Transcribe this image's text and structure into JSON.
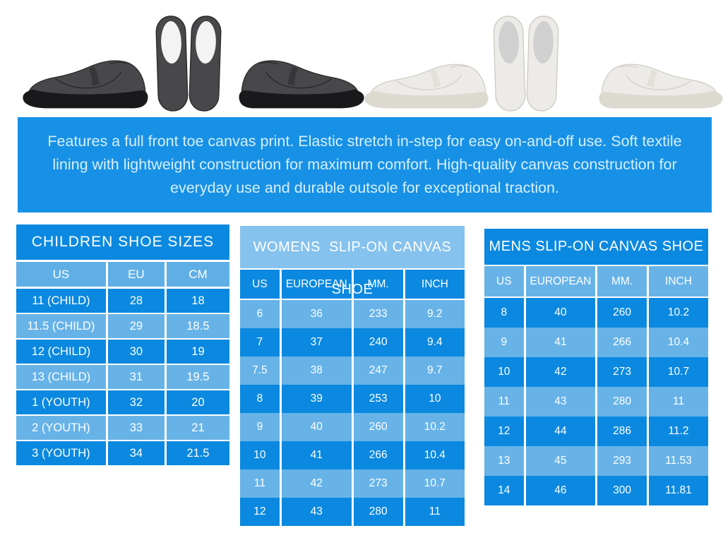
{
  "colors": {
    "banner_bg": "#1791e6",
    "banner_text": "#d6effb",
    "blue_dark": "#0b89e0",
    "row_light": "#67b3e8",
    "head_light": "#5fafe6",
    "title_light": "#85c2ed",
    "white": "#ffffff",
    "shoe_black_canvas": "#48484b",
    "shoe_black_sole": "#19191b",
    "shoe_black_insole": "#f3f3f3",
    "shoe_white_canvas": "#edebe7",
    "shoe_white_sole": "#dcd9d0",
    "shoe_white_insole": "#d0d0d0"
  },
  "product_photos": [
    {
      "name": "black-slip-on-side-view-toe-left"
    },
    {
      "name": "black-slip-on-pair-top-view"
    },
    {
      "name": "black-slip-on-side-view-toe-right"
    },
    {
      "name": "white-slip-on-side-view-toe-left"
    },
    {
      "name": "white-slip-on-pair-top-view"
    },
    {
      "name": "white-slip-on-side-view-toe-right"
    }
  ],
  "banner": {
    "lines": [
      "Features a full front toe canvas print. Elastic stretch in-step for easy on-and-off use. Soft textile",
      "lining with lightweight construction for maximum comfort. High-quality canvas construction for",
      "everyday use and durable outsole for exceptional traction."
    ]
  },
  "chart_data": [
    {
      "type": "table",
      "title": "CHILDREN SHOE SIZES",
      "columns": [
        "US",
        "EU",
        "CM"
      ],
      "rows": [
        [
          "11 (CHILD)",
          "28",
          "18"
        ],
        [
          "11.5 (CHILD)",
          "29",
          "18.5"
        ],
        [
          "12 (CHILD)",
          "30",
          "19"
        ],
        [
          "13 (CHILD)",
          "31",
          "19.5"
        ],
        [
          "1 (YOUTH)",
          "32",
          "20"
        ],
        [
          "2 (YOUTH)",
          "33",
          "21"
        ],
        [
          "3 (YOUTH)",
          "34",
          "21.5"
        ]
      ]
    },
    {
      "type": "table",
      "title": "WOMENS  SLIP-ON CANVAS SHOE",
      "columns": [
        "US",
        "EUROPEAN",
        "MM.",
        "INCH"
      ],
      "rows": [
        [
          "6",
          "36",
          "233",
          "9.2"
        ],
        [
          "7",
          "37",
          "240",
          "9.4"
        ],
        [
          "7.5",
          "38",
          "247",
          "9.7"
        ],
        [
          "8",
          "39",
          "253",
          "10"
        ],
        [
          "9",
          "40",
          "260",
          "10.2"
        ],
        [
          "10",
          "41",
          "266",
          "10.4"
        ],
        [
          "11",
          "42",
          "273",
          "10.7"
        ],
        [
          "12",
          "43",
          "280",
          "11"
        ]
      ]
    },
    {
      "type": "table",
      "title": "MENS SLIP-ON CANVAS SHOE",
      "columns": [
        "US",
        "EUROPEAN",
        "MM.",
        "INCH"
      ],
      "rows": [
        [
          "8",
          "40",
          "260",
          "10.2"
        ],
        [
          "9",
          "41",
          "266",
          "10.4"
        ],
        [
          "10",
          "42",
          "273",
          "10.7"
        ],
        [
          "11",
          "43",
          "280",
          "11"
        ],
        [
          "12",
          "44",
          "286",
          "11.2"
        ],
        [
          "13",
          "45",
          "293",
          "11.53"
        ],
        [
          "14",
          "46",
          "300",
          "11.81"
        ]
      ]
    }
  ]
}
